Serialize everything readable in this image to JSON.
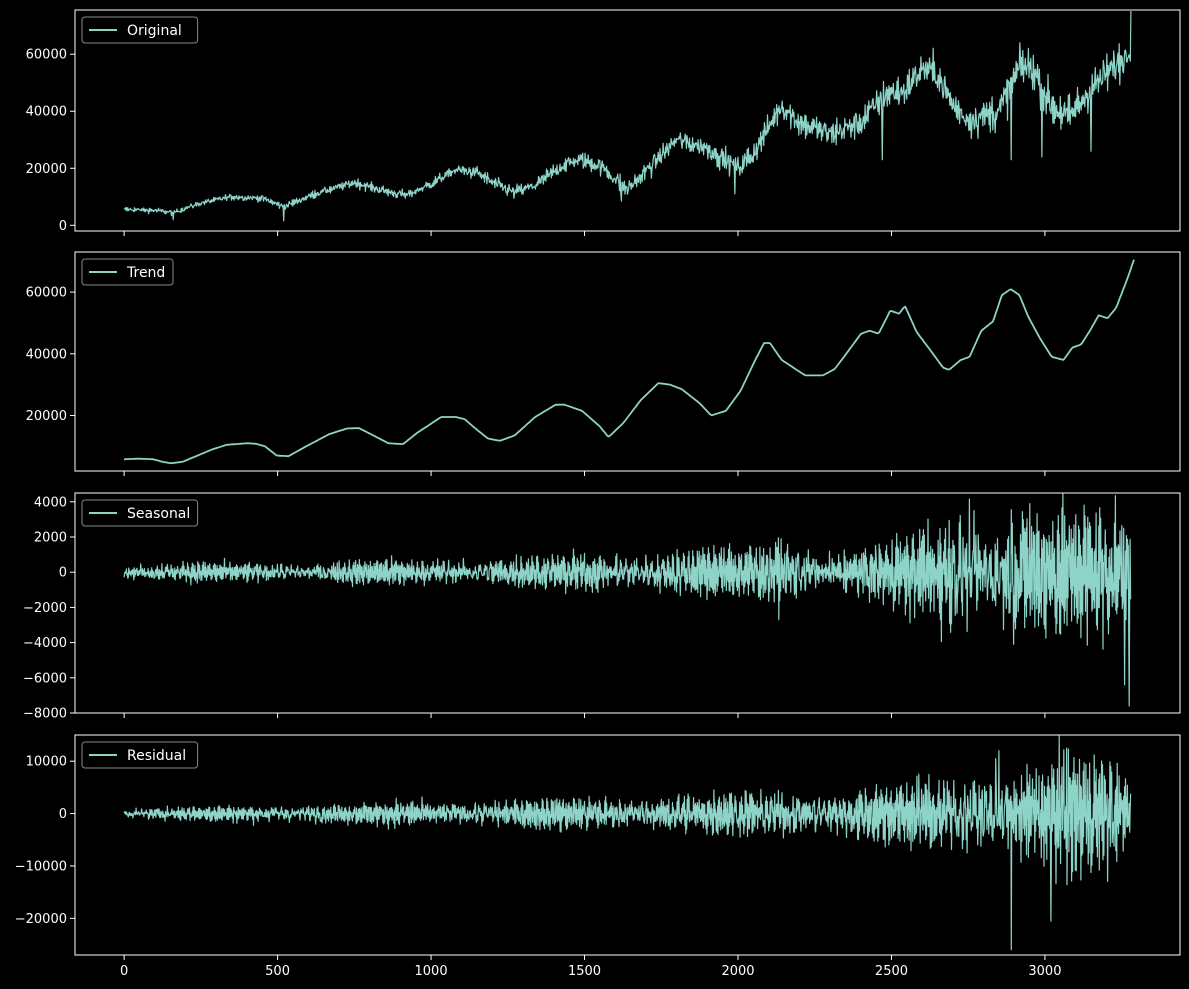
{
  "theme": {
    "background": "#000000",
    "axes_edge": "#ffffff",
    "text": "#ffffff",
    "line": "#8dd3c7",
    "legend_edge": "#888888"
  },
  "chart_data": [
    {
      "type": "line",
      "panel": "original",
      "legend": "Original",
      "legend_position": "top-left",
      "grid": false,
      "xlim": [
        -160,
        3440
      ],
      "ylim": [
        -2000,
        75500
      ],
      "yticks": [
        0,
        20000,
        40000,
        60000
      ],
      "xticks": [
        0,
        500,
        1000,
        1500,
        2000,
        2500,
        3000
      ],
      "show_x_tick_labels": false,
      "trend_points": [
        [
          0,
          5600
        ],
        [
          100,
          5200
        ],
        [
          160,
          4500
        ],
        [
          250,
          7800
        ],
        [
          350,
          10000
        ],
        [
          450,
          9500
        ],
        [
          520,
          6500
        ],
        [
          620,
          11000
        ],
        [
          750,
          15000
        ],
        [
          850,
          12000
        ],
        [
          920,
          10500
        ],
        [
          1000,
          14500
        ],
        [
          1080,
          19500
        ],
        [
          1150,
          18500
        ],
        [
          1200,
          15000
        ],
        [
          1270,
          11500
        ],
        [
          1340,
          14000
        ],
        [
          1430,
          21000
        ],
        [
          1480,
          23000
        ],
        [
          1550,
          21000
        ],
        [
          1640,
          12500
        ],
        [
          1700,
          19000
        ],
        [
          1800,
          30000
        ],
        [
          1900,
          27000
        ],
        [
          2000,
          20000
        ],
        [
          2050,
          25000
        ],
        [
          2140,
          42000
        ],
        [
          2200,
          36000
        ],
        [
          2300,
          32000
        ],
        [
          2400,
          36000
        ],
        [
          2480,
          46000
        ],
        [
          2540,
          47000
        ],
        [
          2600,
          55000
        ],
        [
          2650,
          53000
        ],
        [
          2700,
          42000
        ],
        [
          2750,
          37000
        ],
        [
          2850,
          40000
        ],
        [
          2920,
          56000
        ],
        [
          2960,
          55000
        ],
        [
          3020,
          42000
        ],
        [
          3080,
          38000
        ],
        [
          3150,
          48000
        ],
        [
          3200,
          53000
        ],
        [
          3270,
          60000
        ],
        [
          3280,
          65000
        ]
      ],
      "spikes": [
        [
          160,
          2000
        ],
        [
          520,
          1500
        ],
        [
          1620,
          8500
        ],
        [
          1990,
          11000
        ],
        [
          2470,
          23000
        ],
        [
          2890,
          23000
        ],
        [
          2990,
          24000
        ],
        [
          3150,
          26000
        ],
        [
          3280,
          75500
        ]
      ],
      "noise": "grows with x: about 1000 near 0, about 8000 near 3000"
    },
    {
      "type": "line",
      "panel": "trend",
      "legend": "Trend",
      "legend_position": "top-left",
      "grid": false,
      "xlim": [
        -160,
        3440
      ],
      "ylim": [
        2000,
        73000
      ],
      "yticks": [
        20000,
        40000,
        60000
      ],
      "xticks": [
        0,
        500,
        1000,
        1500,
        2000,
        2500,
        3000
      ],
      "show_x_tick_labels": false,
      "points": [
        [
          0,
          5800
        ],
        [
          50,
          6000
        ],
        [
          100,
          5800
        ],
        [
          130,
          5000
        ],
        [
          160,
          4500
        ],
        [
          200,
          5000
        ],
        [
          250,
          7000
        ],
        [
          300,
          9000
        ],
        [
          350,
          10500
        ],
        [
          420,
          11000
        ],
        [
          450,
          10800
        ],
        [
          480,
          10000
        ],
        [
          520,
          7000
        ],
        [
          560,
          6800
        ],
        [
          620,
          10000
        ],
        [
          700,
          14000
        ],
        [
          760,
          15800
        ],
        [
          800,
          15900
        ],
        [
          850,
          13500
        ],
        [
          900,
          11000
        ],
        [
          950,
          10700
        ],
        [
          1000,
          14500
        ],
        [
          1080,
          19500
        ],
        [
          1130,
          19500
        ],
        [
          1160,
          18800
        ],
        [
          1200,
          15500
        ],
        [
          1240,
          12500
        ],
        [
          1280,
          11800
        ],
        [
          1330,
          13500
        ],
        [
          1400,
          19500
        ],
        [
          1470,
          23500
        ],
        [
          1500,
          23500
        ],
        [
          1560,
          21500
        ],
        [
          1620,
          16500
        ],
        [
          1650,
          13000
        ],
        [
          1700,
          17500
        ],
        [
          1760,
          25000
        ],
        [
          1820,
          30500
        ],
        [
          1860,
          30000
        ],
        [
          1900,
          28500
        ],
        [
          1960,
          24000
        ],
        [
          2000,
          20000
        ],
        [
          2050,
          21500
        ],
        [
          2100,
          28000
        ],
        [
          2150,
          38000
        ],
        [
          2180,
          43500
        ],
        [
          2200,
          43500
        ],
        [
          2240,
          38000
        ],
        [
          2280,
          35500
        ],
        [
          2320,
          33000
        ],
        [
          2380,
          33000
        ],
        [
          2420,
          35000
        ],
        [
          2460,
          40000
        ],
        [
          2510,
          46500
        ],
        [
          2540,
          47500
        ],
        [
          2570,
          46500
        ],
        [
          2610,
          54000
        ],
        [
          2640,
          53000
        ],
        [
          2660,
          55500
        ],
        [
          2700,
          47000
        ],
        [
          2740,
          42000
        ],
        [
          2790,
          35500
        ],
        [
          2810,
          34800
        ],
        [
          2850,
          38000
        ],
        [
          2880,
          39000
        ],
        [
          2920,
          47500
        ],
        [
          2960,
          50500
        ],
        [
          2990,
          59000
        ],
        [
          3020,
          61000
        ],
        [
          3050,
          59000
        ],
        [
          3080,
          52000
        ],
        [
          3120,
          45000
        ],
        [
          3160,
          39000
        ],
        [
          3200,
          38000
        ],
        [
          3230,
          42000
        ],
        [
          3260,
          43000
        ],
        [
          3290,
          47500
        ],
        [
          3320,
          52500
        ],
        [
          3350,
          51500
        ],
        [
          3380,
          55000
        ],
        [
          3400,
          60000
        ],
        [
          3420,
          65000
        ],
        [
          3440,
          70500
        ]
      ]
    },
    {
      "type": "line",
      "panel": "seasonal",
      "legend": "Seasonal",
      "legend_position": "top-left",
      "grid": false,
      "xlim": [
        -160,
        3440
      ],
      "ylim": [
        -8000,
        4500
      ],
      "yticks": [
        -8000,
        -6000,
        -4000,
        -2000,
        0,
        2000,
        4000
      ],
      "xticks": [
        0,
        500,
        1000,
        1500,
        2000,
        2500,
        3000
      ],
      "show_x_tick_labels": false,
      "amplitude_envelope": [
        [
          0,
          400
        ],
        [
          500,
          500
        ],
        [
          900,
          600
        ],
        [
          1400,
          800
        ],
        [
          1700,
          1100
        ],
        [
          2000,
          1200
        ],
        [
          2150,
          1800
        ],
        [
          2300,
          1000
        ],
        [
          2500,
          1500
        ],
        [
          2700,
          3000
        ],
        [
          2900,
          3500
        ],
        [
          3100,
          3000
        ],
        [
          3280,
          3500
        ]
      ],
      "extremes": [
        [
          2950,
          3900
        ],
        [
          3260,
          -6400
        ],
        [
          3275,
          -7600
        ]
      ]
    },
    {
      "type": "line",
      "panel": "residual",
      "legend": "Residual",
      "legend_position": "top-left",
      "grid": false,
      "xlim": [
        -160,
        3440
      ],
      "ylim": [
        -27000,
        15000
      ],
      "yticks": [
        -20000,
        -10000,
        0,
        10000
      ],
      "xticks": [
        0,
        500,
        1000,
        1500,
        2000,
        2500,
        3000
      ],
      "show_x_tick_labels": true,
      "amplitude_envelope": [
        [
          0,
          800
        ],
        [
          500,
          1500
        ],
        [
          1000,
          2000
        ],
        [
          1500,
          2500
        ],
        [
          2000,
          3500
        ],
        [
          2500,
          4500
        ],
        [
          2700,
          7000
        ],
        [
          2900,
          9000
        ],
        [
          3100,
          10000
        ],
        [
          3280,
          8000
        ]
      ],
      "extremes": [
        [
          2890,
          -26000
        ],
        [
          3020,
          -20500
        ],
        [
          3070,
          12500
        ],
        [
          2850,
          12000
        ]
      ]
    }
  ]
}
